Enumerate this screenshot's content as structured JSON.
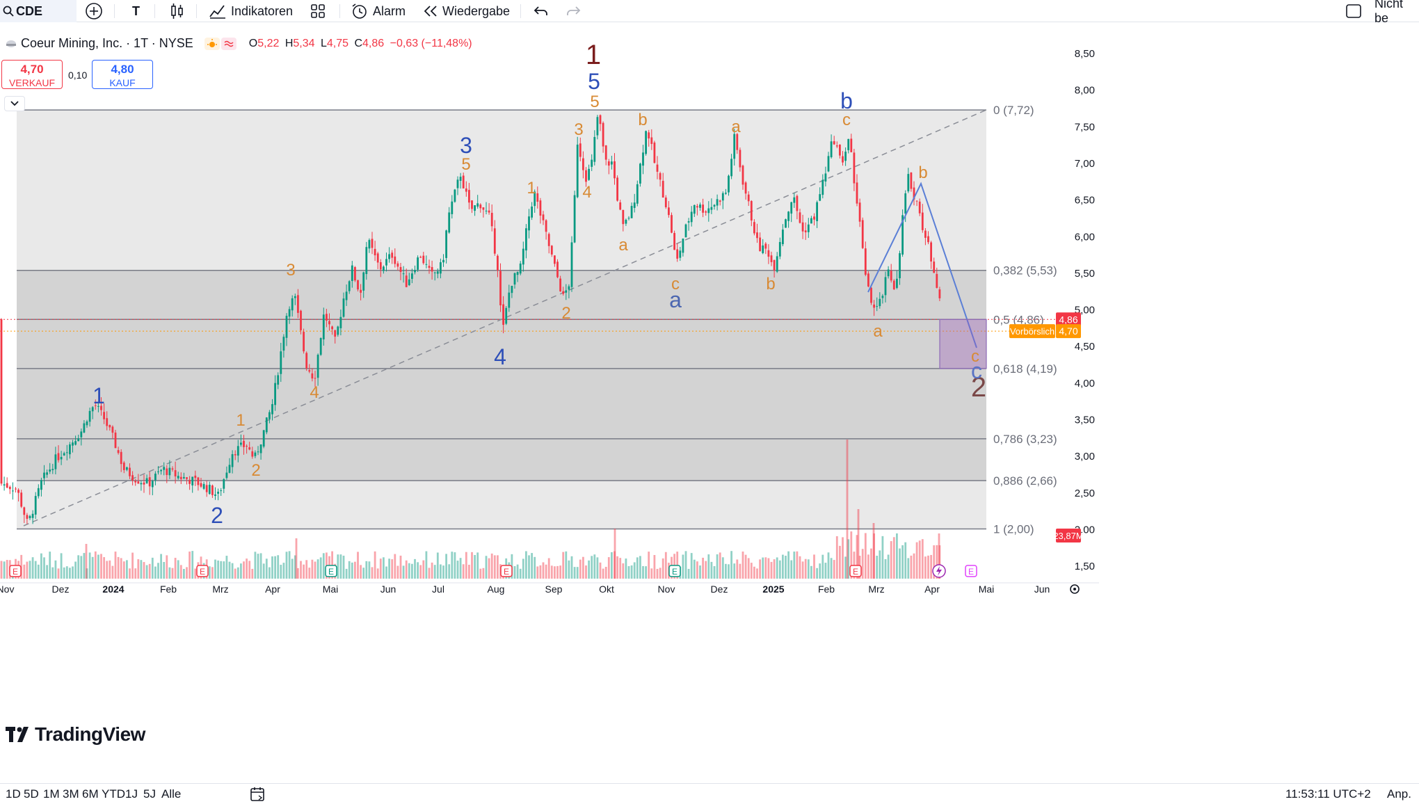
{
  "toolbar": {
    "symbol": "CDE",
    "text_tool": "T",
    "indicators_label": "Indikatoren",
    "alert_label": "Alarm",
    "replay_label": "Wiedergabe",
    "right_label": "Nicht be"
  },
  "legend": {
    "company": "Coeur Mining, Inc. · 1T · NYSE",
    "o_key": "O",
    "o_val": "5,22",
    "h_key": "H",
    "h_val": "5,34",
    "l_key": "L",
    "l_val": "4,75",
    "c_key": "C",
    "c_val": "4,86",
    "change": "−0,63 (−11,48%)"
  },
  "trade": {
    "sell_price": "4,70",
    "sell_label": "VERKAUF",
    "spread": "0,10",
    "buy_price": "4,80",
    "buy_label": "KAUF"
  },
  "price_axis": {
    "ticks": [
      "8,50",
      "8,00",
      "7,50",
      "7,00",
      "6,50",
      "6,00",
      "5,50",
      "5,00",
      "4,50",
      "4,00",
      "3,50",
      "3,00",
      "2,50",
      "2,00",
      "1,50"
    ],
    "last_price": "4,86",
    "premarket_label": "Vorbörslich",
    "premarket_price": "4,70",
    "volume_label": "23,87M"
  },
  "time_axis": [
    "Nov",
    "Dez",
    "2024",
    "Feb",
    "Mrz",
    "Apr",
    "Mai",
    "Jun",
    "Jul",
    "Aug",
    "Sep",
    "Okt",
    "Nov",
    "Dez",
    "2025",
    "Feb",
    "Mrz",
    "Apr",
    "Mai",
    "Jun"
  ],
  "fib_levels": [
    {
      "label": "0 (7,72)",
      "price": 7.72
    },
    {
      "label": "0,382 (5,53)",
      "price": 5.53
    },
    {
      "label": "0,5 (4,86)",
      "price": 4.86
    },
    {
      "label": "0,618 (4,19)",
      "price": 4.19
    },
    {
      "label": "0,786 (3,23)",
      "price": 3.23
    },
    {
      "label": "0,886 (2,66)",
      "price": 2.66
    },
    {
      "label": "1 (2,00)",
      "price": 2.0
    }
  ],
  "wave_labels": {
    "primary_1": "1",
    "primary_2": "2",
    "blue_1": "1",
    "blue_2": "2",
    "blue_3": "3",
    "blue_4": "4",
    "blue_5": "5",
    "blue_a": "a",
    "blue_b": "b",
    "blue_c": "c",
    "o_1a": "1",
    "o_2a": "2",
    "o_3a": "3",
    "o_4a": "4",
    "o_5b": "5",
    "o_1b": "1",
    "o_2b": "2",
    "o_3b": "3",
    "o_4b": "4",
    "o_5c": "5",
    "o_a1": "a",
    "o_b1": "b",
    "o_c1": "c",
    "o_a2": "a",
    "o_b2": "b",
    "o_c2": "c",
    "o_a3": "a",
    "o_b3": "b",
    "o_c3": "c"
  },
  "timeframes": [
    "1D",
    "5D",
    "1M",
    "3M",
    "6M",
    "YTD",
    "1J",
    "5J",
    "Alle"
  ],
  "clock": "11:53:11 UTC+2",
  "adjust_label": "Anp.",
  "brand": "TradingView",
  "event_markers": [
    {
      "letter": "E",
      "kind": "earnings"
    },
    {
      "letter": "E",
      "kind": "earnings"
    },
    {
      "letter": "E",
      "kind": "earnings"
    },
    {
      "letter": "E",
      "kind": "earnings"
    },
    {
      "letter": "E",
      "kind": "earnings"
    },
    {
      "letter": "E",
      "kind": "earnings"
    },
    {
      "letter": "E",
      "kind": "earnings"
    }
  ],
  "colors": {
    "up": "#089981",
    "down": "#f23645",
    "wave_dark": "#7b1e1e",
    "wave_blue": "#2e4fb8",
    "wave_orange": "#d88a34",
    "fib_line": "#787b86",
    "trend_blue": "#5b7fd6"
  }
}
